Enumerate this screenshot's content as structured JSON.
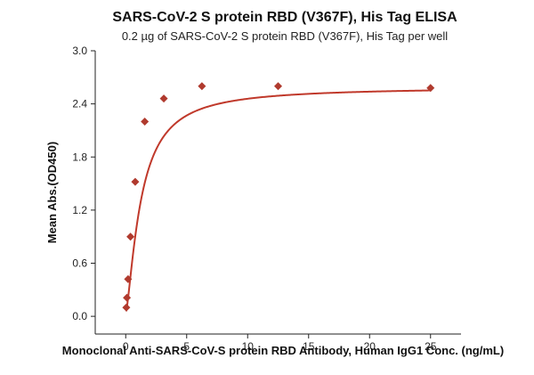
{
  "chart_data": {
    "type": "scatter",
    "title": "SARS-CoV-2 S protein RBD (V367F), His Tag ELISA",
    "subtitle": "0.2 µg of SARS-CoV-2 S protein RBD (V367F), His Tag per well",
    "xlabel": "Monoclonal Anti-SARS-CoV-S protein RBD Antibody, Human IgG1 Conc. (ng/mL)",
    "ylabel": "Mean Abs.(OD450)",
    "xlim": [
      -2.5,
      27.5
    ],
    "ylim": [
      -0.2,
      3.0
    ],
    "x_ticks": [
      0,
      5,
      10,
      15,
      20,
      25
    ],
    "y_ticks": [
      0.0,
      0.6,
      1.2,
      1.8,
      2.4,
      3.0
    ],
    "y_tick_labels": [
      "0.0",
      "0.6",
      "1.2",
      "1.8",
      "2.4",
      "3.0"
    ],
    "grid": false,
    "legend": "none",
    "marker": "diamond",
    "color": "#b03a2e",
    "series": [
      {
        "x": [
          0.049,
          0.098,
          0.195,
          0.391,
          0.781,
          1.563,
          3.125,
          6.25,
          12.5,
          25
        ],
        "y": [
          0.1,
          0.21,
          0.42,
          0.9,
          1.52,
          2.2,
          2.46,
          2.6,
          2.6,
          2.58
        ]
      }
    ],
    "fit": {
      "type": "4PL",
      "bottom": 0.03,
      "top": 2.59,
      "ec50": 1.25,
      "hill": 1.4
    }
  }
}
